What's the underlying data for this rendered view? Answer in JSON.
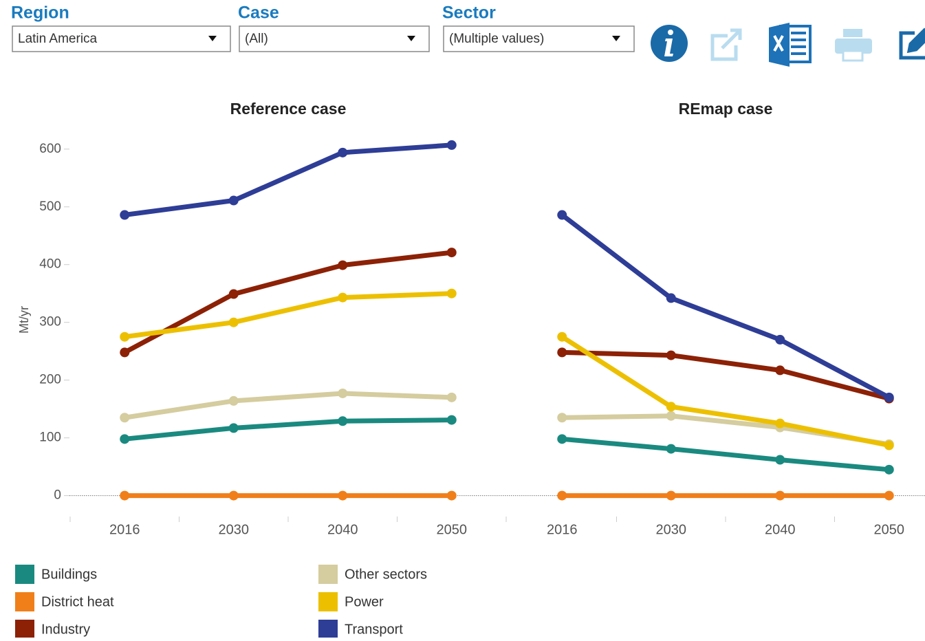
{
  "filters": [
    {
      "label": "Region",
      "value": "Latin America"
    },
    {
      "label": "Case",
      "value": "(All)"
    },
    {
      "label": "Sector",
      "value": "(Multiple values)"
    }
  ],
  "chart_data": [
    {
      "type": "line",
      "title": "Reference case",
      "y_label": "Mt/yr",
      "categories": [
        "2016",
        "2030",
        "2040",
        "2050"
      ],
      "ylim": [
        -35,
        620
      ],
      "yticks": [
        0,
        100,
        200,
        300,
        400,
        500,
        600
      ],
      "series": [
        {
          "name": "Buildings",
          "color": "#1a8a80",
          "values": [
            98,
            117,
            129,
            131
          ]
        },
        {
          "name": "District heat",
          "color": "#f07f1a",
          "values": [
            0,
            0,
            0,
            0
          ]
        },
        {
          "name": "Industry",
          "color": "#8c2106",
          "values": [
            248,
            349,
            399,
            421
          ]
        },
        {
          "name": "Other sectors",
          "color": "#d5cc9f",
          "values": [
            135,
            164,
            177,
            170
          ]
        },
        {
          "name": "Power",
          "color": "#ecc000",
          "values": [
            275,
            300,
            343,
            350
          ]
        },
        {
          "name": "Transport",
          "color": "#2e3d96",
          "values": [
            486,
            511,
            594,
            607
          ]
        }
      ]
    },
    {
      "type": "line",
      "title": "REmap case",
      "categories": [
        "2016",
        "2030",
        "2040",
        "2050"
      ],
      "series": [
        {
          "name": "Buildings",
          "color": "#1a8a80",
          "values": [
            98,
            81,
            62,
            45
          ]
        },
        {
          "name": "District heat",
          "color": "#f07f1a",
          "values": [
            0,
            0,
            0,
            0
          ]
        },
        {
          "name": "Industry",
          "color": "#8c2106",
          "values": [
            248,
            243,
            217,
            168
          ]
        },
        {
          "name": "Other sectors",
          "color": "#d5cc9f",
          "values": [
            135,
            138,
            118,
            89
          ]
        },
        {
          "name": "Power",
          "color": "#ecc000",
          "values": [
            275,
            154,
            125,
            87
          ]
        },
        {
          "name": "Transport",
          "color": "#2e3d96",
          "values": [
            486,
            342,
            270,
            170
          ]
        }
      ]
    }
  ]
}
